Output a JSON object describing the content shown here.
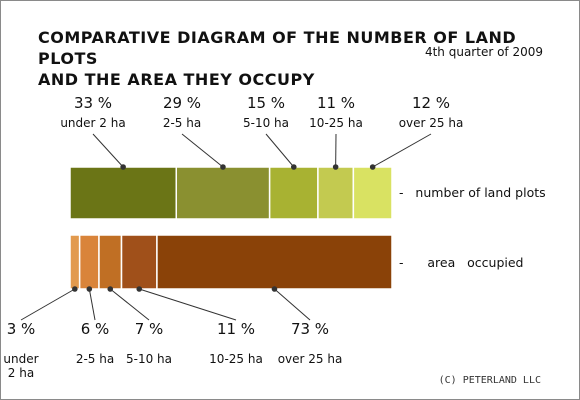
{
  "title_line1": "COMPARATIVE DIAGRAM OF THE NUMBER OF LAND PLOTS",
  "title_line2": "AND THE AREA THEY OCCUPY",
  "subtitle": "4th quarter of 2009",
  "credit": "(C) PETERLAND LLC",
  "chart_data": {
    "type": "bar",
    "orientation": "horizontal-stacked-100",
    "categories": [
      "under 2 ha",
      "2-5 ha",
      "5-10 ha",
      "10-25 ha",
      "over 25 ha"
    ],
    "series": [
      {
        "name": "number of land plots",
        "legend_text": "-   number of land plots",
        "values": [
          33,
          29,
          15,
          11,
          12
        ],
        "value_labels": [
          "33 %",
          "29 %",
          "15 %",
          "11 %",
          "12 %"
        ],
        "category_labels": [
          [
            "under 2 ha"
          ],
          [
            "2-5 ha"
          ],
          [
            "5-10 ha"
          ],
          [
            "10-25 ha"
          ],
          [
            "over 25 ha"
          ]
        ],
        "colors": [
          "#6b7516",
          "#8a9030",
          "#a8b232",
          "#c3ca50",
          "#d9e262"
        ]
      },
      {
        "name": "area occupied",
        "legend_text": "-      area   occupied",
        "values": [
          3,
          6,
          7,
          11,
          73
        ],
        "value_labels": [
          "3 %",
          "6 %",
          "7 %",
          "11 %",
          "73 %"
        ],
        "category_labels": [
          [
            "under",
            "2 ha"
          ],
          [
            "2-5 ha"
          ],
          [
            "5-10 ha"
          ],
          [
            "10-25 ha"
          ],
          [
            "over 25 ha"
          ]
        ],
        "colors": [
          "#e29a4e",
          "#d9843a",
          "#c06f24",
          "#a0501a",
          "#8a4208"
        ]
      }
    ],
    "unit": "%",
    "legend": "right"
  }
}
